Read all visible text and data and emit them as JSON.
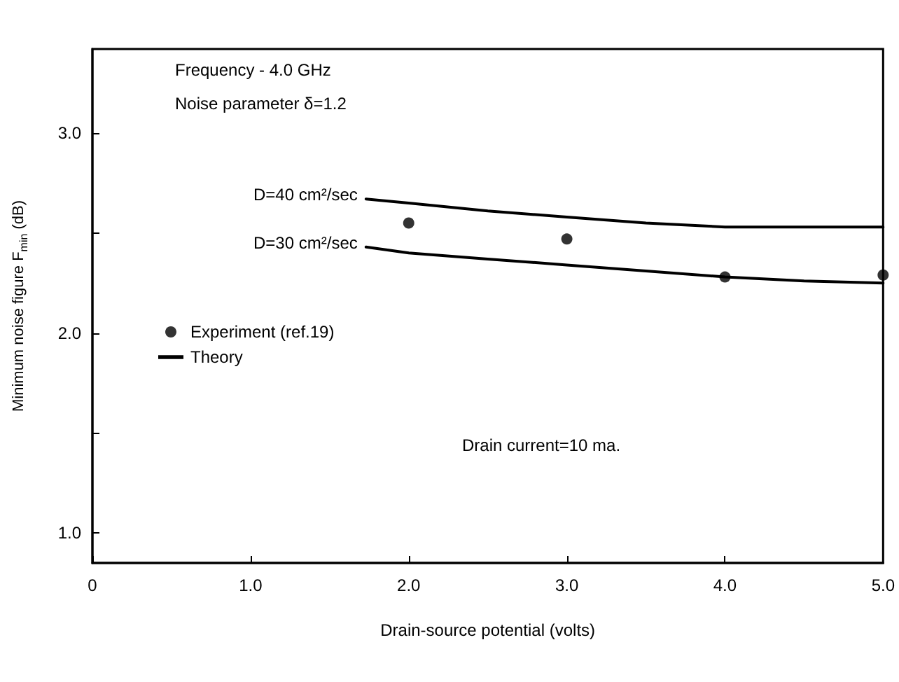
{
  "chart_data": {
    "type": "line",
    "xlabel": "Drain-source potential (volts)",
    "ylabel": "Minimum noise figure F$_{min}$ (dB)",
    "xlim": [
      0,
      5
    ],
    "xticks": [
      0,
      {
        "value": 1,
        "label": "1.0"
      },
      {
        "value": 2,
        "label": "2.0"
      },
      {
        "value": 3,
        "label": "3.0"
      },
      {
        "value": 4,
        "label": "4.0"
      },
      {
        "value": 5,
        "label": "5.0"
      }
    ],
    "ylim": [
      0.85,
      3.42
    ],
    "yticks": [
      {
        "value": 1,
        "label": "1.0"
      },
      {
        "value": 1.5,
        "label": null
      },
      {
        "value": 2,
        "label": "2.0"
      },
      {
        "value": 2.5,
        "label": null
      },
      {
        "value": 3,
        "label": "3.0"
      }
    ],
    "grid": false,
    "legend": "left",
    "series": [
      {
        "name": "Theory",
        "color": "#000000",
        "x": [
          1.73,
          2,
          2.5,
          3,
          3.5,
          4,
          4.5,
          5
        ],
        "values": [
          2.67,
          2.65,
          2.61,
          2.58,
          2.55,
          2.53,
          2.53,
          2.53
        ],
        "marker": "none",
        "line_style": "solid"
      },
      {
        "color": "#000000",
        "x": [
          1.73,
          2,
          2.5,
          3,
          3.5,
          4,
          4.5,
          5
        ],
        "values": [
          2.43,
          2.4,
          2.37,
          2.34,
          2.31,
          2.28,
          2.26,
          2.25
        ],
        "marker": "none",
        "line_style": "solid"
      },
      {
        "name": "Experiment (ref.19)",
        "type": "scatter",
        "color": "#000000",
        "x": [
          2,
          3,
          4,
          5
        ],
        "values": [
          2.55,
          2.47,
          2.28,
          2.29
        ],
        "marker": "circle"
      }
    ],
    "annotations": [
      {
        "text": "D=40 cm²/sec",
        "x": 1.73,
        "y": 2.67
      },
      {
        "text": "D=30 cm²/sec",
        "x": 1.73,
        "y": 2.43
      },
      "Frequency - 4.0 GHz",
      "Noise parameter δ=1.2",
      "Drain current=10 ma."
    ]
  }
}
